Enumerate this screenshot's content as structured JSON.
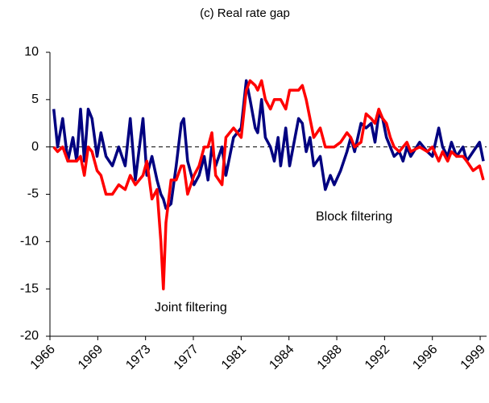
{
  "chart_data": {
    "type": "line",
    "title": "(c) Real rate gap",
    "x": [
      1966.3,
      1966.6,
      1967.0,
      1967.4,
      1967.8,
      1968.1,
      1968.4,
      1968.7,
      1969.0,
      1969.3,
      1969.7,
      1970.0,
      1970.4,
      1970.9,
      1971.4,
      1971.9,
      1972.3,
      1972.7,
      1973.3,
      1973.6,
      1974.0,
      1974.4,
      1974.7,
      1974.9,
      1975.1,
      1975.5,
      1975.9,
      1976.3,
      1976.5,
      1976.8,
      1977.3,
      1977.7,
      1978.1,
      1978.4,
      1978.7,
      1979.0,
      1979.5,
      1979.8,
      1980.4,
      1981.0,
      1981.4,
      1981.7,
      1982.1,
      1982.3,
      1982.6,
      1982.9,
      1983.3,
      1983.6,
      1983.9,
      1984.1,
      1984.5,
      1984.8,
      1985.5,
      1985.8,
      1986.1,
      1986.4,
      1986.7,
      1987.2,
      1987.6,
      1988.0,
      1988.3,
      1988.8,
      1989.3,
      1989.6,
      1989.9,
      1990.4,
      1990.8,
      1991.2,
      1991.5,
      1991.8,
      1992.1,
      1992.4,
      1992.7,
      1993.0,
      1993.4,
      1993.7,
      1994.0,
      1994.3,
      1995.0,
      1995.6,
      1996.0,
      1996.5,
      1996.8,
      1997.2,
      1997.5,
      1997.9,
      1998.4,
      1998.7,
      1999.2,
      1999.7,
      2000.0
    ],
    "series": [
      {
        "name": "Block filtering",
        "color": "#000080",
        "values": [
          4,
          0,
          3,
          -1.5,
          1,
          -1.5,
          4,
          -1.5,
          4,
          3,
          -1,
          1.5,
          -1,
          -2,
          0,
          -2,
          3,
          -3.5,
          3,
          -3,
          -1,
          -3.5,
          -5,
          -5.5,
          -6.5,
          -6,
          -2,
          2.5,
          3,
          -1.5,
          -4,
          -3,
          -1,
          -3.5,
          0,
          -2,
          0,
          -3,
          1,
          2,
          7,
          5,
          2,
          1.5,
          5,
          1,
          0,
          -1.5,
          1,
          -2,
          2,
          -2,
          3,
          2.5,
          -0.5,
          1,
          -2,
          -1,
          -4.5,
          -3,
          -4,
          -2.5,
          -0.5,
          1,
          -0.5,
          2.5,
          2,
          2.5,
          0.5,
          3.5,
          3,
          1,
          0,
          -1,
          -0.5,
          -1.5,
          0,
          -1,
          0.5,
          -0.5,
          -1,
          2,
          0,
          -1,
          0.5,
          -1,
          0,
          -1.5,
          -0.5,
          0.5,
          -1.5
        ]
      },
      {
        "name": "Joint filtering",
        "color": "#ff0000",
        "values": [
          0,
          -0.5,
          0,
          -1.5,
          -1.5,
          -1.5,
          -1,
          -3,
          0,
          -0.5,
          -2.5,
          -3,
          -5,
          -5,
          -4,
          -4.5,
          -3,
          -4,
          -3,
          -1.5,
          -5.5,
          -4.5,
          -10,
          -15,
          -8,
          -3.5,
          -3.5,
          -2,
          -2,
          -5,
          -3,
          -2,
          0,
          0,
          1.5,
          -3,
          -4,
          1,
          2,
          1,
          6,
          7,
          6.5,
          6,
          7,
          5,
          4,
          5,
          5,
          5,
          4,
          6,
          6,
          6.5,
          5,
          3,
          1,
          2,
          0,
          0,
          0,
          0.5,
          1.5,
          1,
          0,
          0.5,
          3.5,
          3,
          2.5,
          4,
          3,
          2.5,
          1,
          0,
          -0.5,
          0,
          0.5,
          -0.5,
          0,
          -0.5,
          0,
          -1.5,
          -0.5,
          -1.5,
          -0.5,
          -1,
          -1,
          -1.5,
          -2.5,
          -2,
          -3.5
        ]
      }
    ],
    "annotations": [
      "Block filtering",
      "Joint filtering"
    ],
    "xlim": [
      1966,
      2000
    ],
    "xticks": [
      {
        "value": 1966,
        "label": "1966"
      },
      {
        "value": 1969.75,
        "label": "1969"
      },
      {
        "value": 1973.5,
        "label": "1973"
      },
      {
        "value": 1977.25,
        "label": "1977"
      },
      {
        "value": 1981,
        "label": "1981"
      },
      {
        "value": 1984.75,
        "label": "1984"
      },
      {
        "value": 1988.5,
        "label": "1988"
      },
      {
        "value": 1992.25,
        "label": "1992"
      },
      {
        "value": 1996,
        "label": "1996"
      },
      {
        "value": 1999.75,
        "label": "1999"
      }
    ],
    "ylim": [
      -20,
      10
    ],
    "yticks": [
      10,
      5,
      0,
      -5,
      -10,
      -15,
      -20
    ]
  }
}
